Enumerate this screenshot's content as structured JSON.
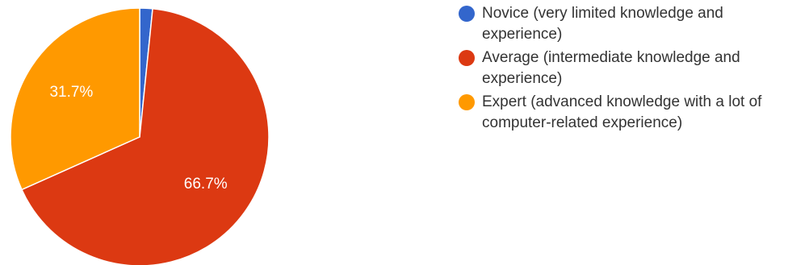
{
  "chart_data": {
    "type": "pie",
    "title": "",
    "categories": [
      "Novice (very limited knowledge and experience)",
      "Average (intermediate knowledge and experience)",
      "Expert (advanced knowledge with a lot of computer-related experience)"
    ],
    "values": [
      1.6,
      66.7,
      31.7
    ],
    "value_labels": [
      "",
      "66.7%",
      "31.7%"
    ],
    "colors": [
      "#3366cc",
      "#dc3912",
      "#ff9900"
    ],
    "legend_position": "right"
  },
  "legend": {
    "items": [
      {
        "label": "Novice (very limited knowledge and experience)",
        "color": "#3366cc"
      },
      {
        "label": "Average (intermediate knowledge and experience)",
        "color": "#dc3912"
      },
      {
        "label": "Expert (advanced knowledge with a lot of computer-related experience)",
        "color": "#ff9900"
      }
    ]
  }
}
